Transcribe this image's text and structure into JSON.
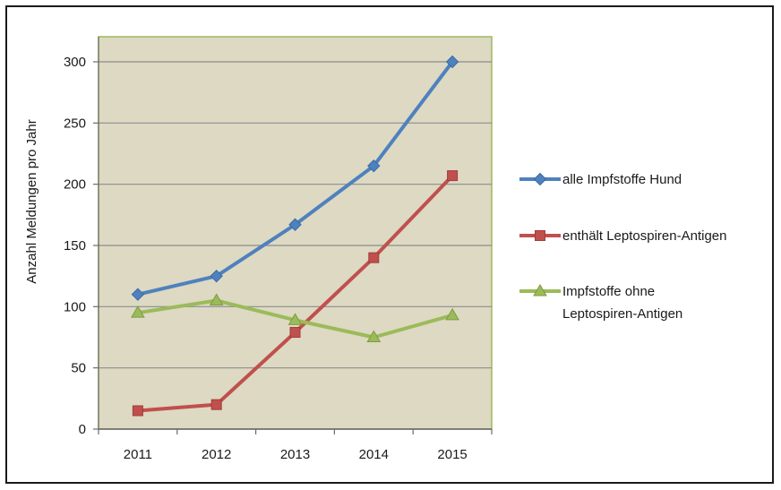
{
  "chart_data": {
    "type": "line",
    "title": "",
    "xlabel": "",
    "ylabel": "Anzahl Meldungen pro Jahr",
    "categories": [
      "2011",
      "2012",
      "2013",
      "2014",
      "2015"
    ],
    "ylim": [
      0,
      300
    ],
    "yticks": [
      0,
      50,
      100,
      150,
      200,
      250,
      300
    ],
    "grid": true,
    "legend_position": "right",
    "plot_background": "#ddd9c3",
    "plot_border_color": "#9bbb59",
    "series": [
      {
        "name_lines": [
          "alle Impfstoffe Hund"
        ],
        "values": [
          110,
          125,
          167,
          215,
          300
        ],
        "color": "#4f81bd",
        "marker": "diamond"
      },
      {
        "name_lines": [
          "enthält Leptospiren-Antigen"
        ],
        "values": [
          15,
          20,
          79,
          140,
          207
        ],
        "color": "#c0504d",
        "marker": "square"
      },
      {
        "name_lines": [
          "Impfstoffe ohne",
          "Leptospiren-Antigen"
        ],
        "values": [
          95,
          105,
          89,
          75,
          93
        ],
        "color": "#9bbb59",
        "marker": "triangle"
      }
    ]
  }
}
